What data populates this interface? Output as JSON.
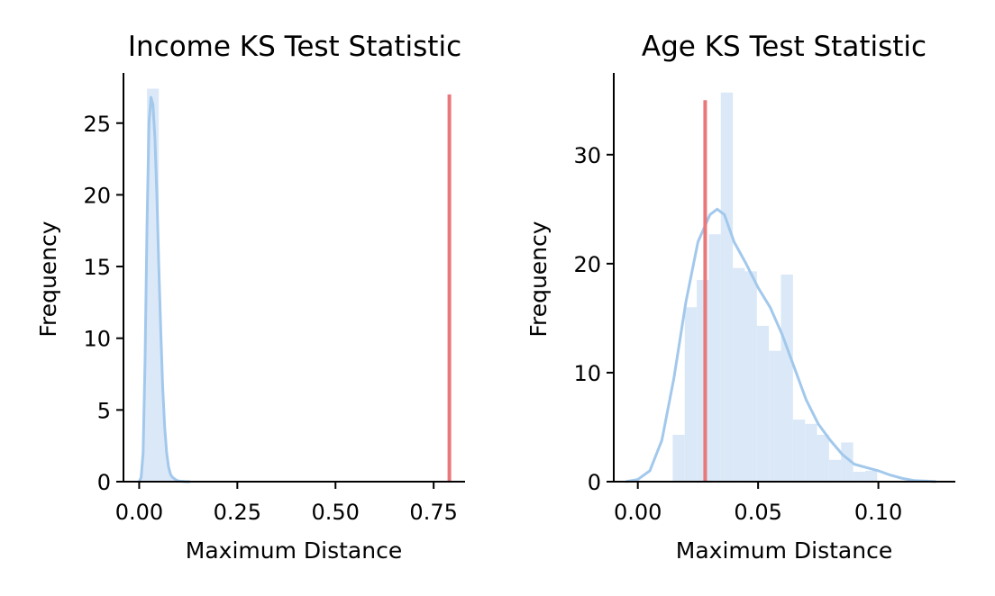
{
  "chart_data": [
    {
      "type": "histogram",
      "title": "Income KS Test Statistic",
      "xlabel": "Maximum Distance",
      "ylabel": "Frequency",
      "xlim": [
        -0.04,
        0.83
      ],
      "ylim": [
        0,
        28.5
      ],
      "xticks": [
        0.0,
        0.25,
        0.5,
        0.75
      ],
      "xtick_labels": [
        "0.00",
        "0.25",
        "0.50",
        "0.75"
      ],
      "yticks": [
        0,
        5,
        10,
        15,
        20,
        25
      ],
      "ytick_labels": [
        "0",
        "5",
        "10",
        "15",
        "20",
        "25"
      ],
      "grid": false,
      "colors": {
        "hist": "#dbe8f8",
        "kde": "#a2c8ec",
        "vline": "#e8787a"
      },
      "histogram": {
        "bins": [
          [
            0.02,
            0.05,
            27.4
          ]
        ]
      },
      "kde": {
        "x": [
          0.0,
          0.005,
          0.01,
          0.015,
          0.02,
          0.025,
          0.03,
          0.035,
          0.04,
          0.045,
          0.05,
          0.055,
          0.06,
          0.065,
          0.07,
          0.075,
          0.08,
          0.085,
          0.09,
          0.095,
          0.1,
          0.105,
          0.11,
          0.115,
          0.12,
          0.125,
          0.13
        ],
        "y": [
          0,
          0.3,
          2.0,
          8.5,
          18.0,
          25.0,
          26.8,
          26.3,
          24.0,
          20.0,
          15.0,
          10.5,
          6.5,
          3.8,
          2.0,
          1.0,
          0.5,
          0.3,
          0.2,
          0.1,
          0.05,
          0.03,
          0.02,
          0.01,
          0,
          0,
          0
        ]
      },
      "vline": {
        "x": 0.79,
        "height": 27
      }
    },
    {
      "type": "histogram",
      "title": "Age KS Test Statistic",
      "xlabel": "Maximum Distance",
      "ylabel": "Frequency",
      "xlim": [
        -0.01,
        0.132
      ],
      "ylim": [
        0,
        37.5
      ],
      "xticks": [
        0.0,
        0.05,
        0.1
      ],
      "xtick_labels": [
        "0.00",
        "0.05",
        "0.10"
      ],
      "yticks": [
        0,
        10,
        20,
        30
      ],
      "ytick_labels": [
        "0",
        "10",
        "20",
        "30"
      ],
      "grid": false,
      "colors": {
        "hist": "#dbe8f8",
        "kde": "#a2c8ec",
        "vline": "#e8787a"
      },
      "histogram": {
        "bins": [
          [
            0.0145,
            0.0195,
            4.3
          ],
          [
            0.0195,
            0.0245,
            16.0
          ],
          [
            0.0245,
            0.0295,
            18.5
          ],
          [
            0.0295,
            0.0345,
            22.7
          ],
          [
            0.0345,
            0.0395,
            35.7
          ],
          [
            0.0395,
            0.0445,
            19.6
          ],
          [
            0.0445,
            0.0495,
            19.3
          ],
          [
            0.0495,
            0.0545,
            14.3
          ],
          [
            0.0545,
            0.0595,
            12.0
          ],
          [
            0.0595,
            0.0645,
            19.0
          ],
          [
            0.0645,
            0.0695,
            5.7
          ],
          [
            0.0695,
            0.0745,
            5.3
          ],
          [
            0.0745,
            0.0795,
            4.3
          ],
          [
            0.0795,
            0.0845,
            2.0
          ],
          [
            0.0845,
            0.0895,
            3.6
          ],
          [
            0.0895,
            0.0945,
            0.9
          ],
          [
            0.0945,
            0.0995,
            1.0
          ]
        ]
      },
      "kde": {
        "x": [
          -0.005,
          0.0,
          0.005,
          0.01,
          0.015,
          0.02,
          0.025,
          0.03,
          0.033,
          0.036,
          0.04,
          0.045,
          0.05,
          0.055,
          0.06,
          0.065,
          0.07,
          0.075,
          0.08,
          0.085,
          0.09,
          0.095,
          0.1,
          0.105,
          0.11,
          0.115,
          0.12,
          0.124
        ],
        "y": [
          0,
          0.2,
          1.0,
          3.8,
          9.5,
          16.5,
          22.0,
          24.5,
          25.0,
          24.5,
          22.0,
          20.0,
          17.8,
          16.0,
          13.5,
          10.5,
          7.5,
          5.3,
          3.8,
          2.5,
          1.6,
          1.3,
          1.0,
          0.6,
          0.3,
          0.1,
          0.05,
          0
        ]
      },
      "vline": {
        "x": 0.028,
        "height": 35
      }
    }
  ]
}
